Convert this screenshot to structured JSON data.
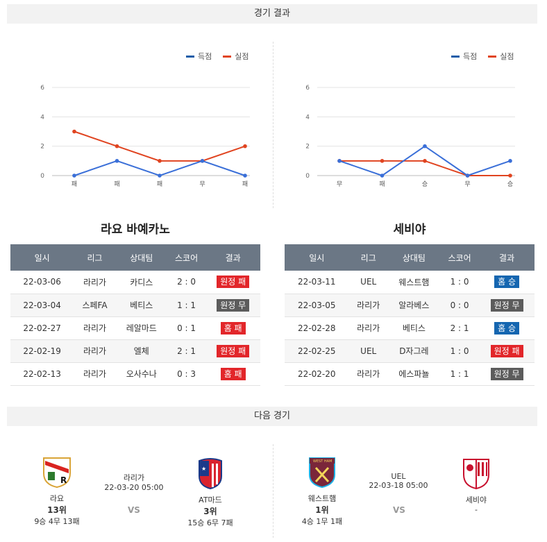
{
  "sections": {
    "results_title": "경기 결과",
    "next_title": "다음 경기"
  },
  "colors": {
    "score": "#3a6fd8",
    "concede": "#e04420"
  },
  "legend": {
    "score_label": "득점",
    "concede_label": "실점"
  },
  "left": {
    "team": "라요 바예카노",
    "chart_data": {
      "type": "line",
      "x": [
        "패",
        "패",
        "패",
        "무",
        "패"
      ],
      "ylim": [
        0,
        6
      ],
      "yticks": [
        0,
        2,
        4,
        6
      ],
      "series": [
        {
          "name": "득점",
          "values": [
            0,
            1,
            0,
            1,
            0
          ]
        },
        {
          "name": "실점",
          "values": [
            3,
            2,
            1,
            1,
            2
          ]
        }
      ]
    },
    "table": {
      "headers": [
        "일시",
        "리그",
        "상대팀",
        "스코어",
        "결과"
      ],
      "rows": [
        {
          "date": "22-03-06",
          "league": "라리가",
          "opp": "카디스",
          "score": "2 : 0",
          "result": "원정 패",
          "color": "red"
        },
        {
          "date": "22-03-04",
          "league": "스페FA",
          "opp": "베티스",
          "score": "1 : 1",
          "result": "원정 무",
          "color": "gray"
        },
        {
          "date": "22-02-27",
          "league": "라리가",
          "opp": "레알마드",
          "score": "0 : 1",
          "result": "홈 패",
          "color": "red"
        },
        {
          "date": "22-02-19",
          "league": "라리가",
          "opp": "엘체",
          "score": "2 : 1",
          "result": "원정 패",
          "color": "red"
        },
        {
          "date": "22-02-13",
          "league": "라리가",
          "opp": "오사수나",
          "score": "0 : 3",
          "result": "홈 패",
          "color": "red"
        }
      ]
    }
  },
  "right": {
    "team": "세비야",
    "chart_data": {
      "type": "line",
      "x": [
        "무",
        "패",
        "승",
        "무",
        "승"
      ],
      "ylim": [
        0,
        6
      ],
      "yticks": [
        0,
        2,
        4,
        6
      ],
      "series": [
        {
          "name": "득점",
          "values": [
            1,
            0,
            2,
            0,
            1
          ]
        },
        {
          "name": "실점",
          "values": [
            1,
            1,
            1,
            0,
            0
          ]
        }
      ]
    },
    "table": {
      "headers": [
        "일시",
        "리그",
        "상대팀",
        "스코어",
        "결과"
      ],
      "rows": [
        {
          "date": "22-03-11",
          "league": "UEL",
          "opp": "웨스트햄",
          "score": "1 : 0",
          "result": "홈 승",
          "color": "blue"
        },
        {
          "date": "22-03-05",
          "league": "라리가",
          "opp": "알라베스",
          "score": "0 : 0",
          "result": "원정 무",
          "color": "gray"
        },
        {
          "date": "22-02-28",
          "league": "라리가",
          "opp": "베티스",
          "score": "2 : 1",
          "result": "홈 승",
          "color": "blue"
        },
        {
          "date": "22-02-25",
          "league": "UEL",
          "opp": "D자그레",
          "score": "1 : 0",
          "result": "원정 패",
          "color": "red"
        },
        {
          "date": "22-02-20",
          "league": "라리가",
          "opp": "에스파뇰",
          "score": "1 : 1",
          "result": "원정 무",
          "color": "gray"
        }
      ]
    }
  },
  "next": {
    "left_match": {
      "home": {
        "name": "라요",
        "rank": "13위",
        "record": "9승 4무 13패",
        "logo": "rayo-logo"
      },
      "league": "라리가",
      "datetime": "22-03-20 05:00",
      "vs": "VS",
      "away": {
        "name": "AT마드",
        "rank": "3위",
        "record": "15승 6무 7패",
        "logo": "atletico-logo"
      }
    },
    "right_match": {
      "home": {
        "name": "웨스트햄",
        "rank": "1위",
        "record": "4승 1무 1패",
        "logo": "westham-logo"
      },
      "league": "UEL",
      "datetime": "22-03-18 05:00",
      "vs": "VS",
      "away": {
        "name": "세비야",
        "rank": "",
        "record": "-",
        "logo": "sevilla-logo"
      }
    }
  }
}
